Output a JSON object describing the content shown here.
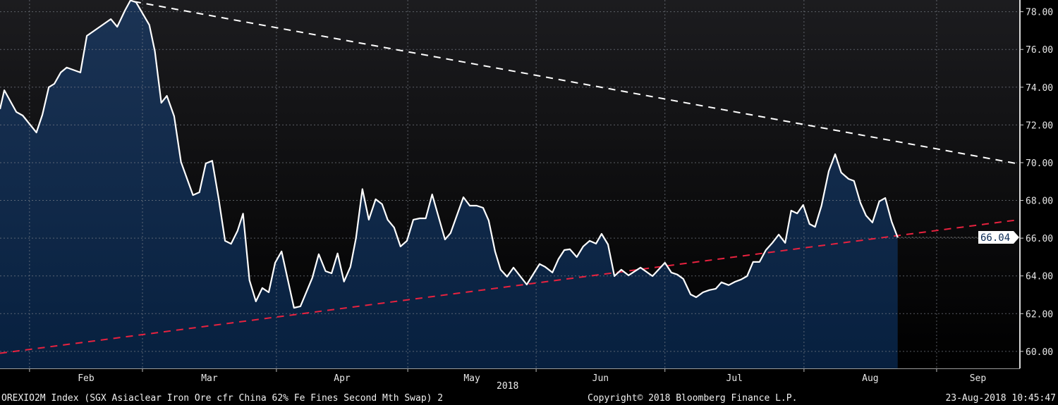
{
  "chart_data": {
    "type": "area",
    "title": "OREXIO2M Index (SGX Asiaclear Iron Ore cfr China 62% Fe Fines Second Mth Swap) 2",
    "x_unit": "day of year 2018",
    "xlim": [
      24.1,
      262.3
    ],
    "ylim": [
      59.1,
      78.62
    ],
    "year_label": "2018",
    "y_ticks": [
      60,
      62,
      64,
      66,
      68,
      70,
      72,
      74,
      76,
      78
    ],
    "y_tick_labels": [
      "60.00",
      "62.00",
      "64.00",
      "66.00",
      "68.00",
      "70.00",
      "72.00",
      "74.00",
      "76.00",
      "78.00"
    ],
    "x_ticks": [
      {
        "label": "Feb",
        "start": 31,
        "end": 57.4
      },
      {
        "label": "Mar",
        "start": 57.4,
        "end": 88.7
      },
      {
        "label": "Apr",
        "start": 88.7,
        "end": 119.4
      },
      {
        "label": "May",
        "start": 119.4,
        "end": 149.4
      },
      {
        "label": "Jun",
        "start": 149.4,
        "end": 179.5
      },
      {
        "label": "Jul",
        "start": 179.5,
        "end": 212
      },
      {
        "label": "Aug",
        "start": 212,
        "end": 243
      },
      {
        "label": "Sep",
        "start": 243,
        "end": 262.3
      }
    ],
    "grid": true,
    "last_value": 66.04,
    "last_value_label": "66.04",
    "series": [
      {
        "name": "OREXIO2M Index",
        "color": "#ffffff",
        "fill_top": "#1b3354",
        "fill_bottom": "#07203f",
        "points": [
          [
            24.1,
            72.84
          ],
          [
            25.1,
            73.84
          ],
          [
            27.9,
            72.69
          ],
          [
            29.4,
            72.5
          ],
          [
            32.6,
            71.6
          ],
          [
            34.0,
            72.54
          ],
          [
            35.5,
            74.0
          ],
          [
            36.8,
            74.18
          ],
          [
            38.3,
            74.78
          ],
          [
            39.7,
            75.04
          ],
          [
            42.9,
            74.78
          ],
          [
            44.4,
            76.72
          ],
          [
            50.0,
            77.61
          ],
          [
            51.5,
            77.2
          ],
          [
            53.3,
            78.06
          ],
          [
            54.6,
            78.6
          ],
          [
            55.9,
            78.5
          ],
          [
            59.0,
            77.3
          ],
          [
            60.3,
            75.9
          ],
          [
            61.8,
            73.17
          ],
          [
            63.1,
            73.54
          ],
          [
            64.8,
            72.46
          ],
          [
            66.4,
            70.04
          ],
          [
            69.2,
            68.28
          ],
          [
            70.7,
            68.43
          ],
          [
            72.2,
            69.96
          ],
          [
            73.7,
            70.1
          ],
          [
            75.2,
            68.1
          ],
          [
            76.7,
            65.86
          ],
          [
            78.1,
            65.7
          ],
          [
            79.6,
            66.38
          ],
          [
            80.9,
            67.3
          ],
          [
            82.4,
            63.77
          ],
          [
            83.9,
            62.65
          ],
          [
            85.4,
            63.36
          ],
          [
            86.9,
            63.13
          ],
          [
            88.4,
            64.7
          ],
          [
            89.9,
            65.3
          ],
          [
            92.8,
            62.31
          ],
          [
            94.3,
            62.39
          ],
          [
            97.1,
            63.9
          ],
          [
            98.6,
            65.15
          ],
          [
            100.2,
            64.25
          ],
          [
            101.6,
            64.14
          ],
          [
            103.0,
            65.19
          ],
          [
            104.5,
            63.7
          ],
          [
            106.0,
            64.48
          ],
          [
            107.3,
            66.0
          ],
          [
            108.8,
            68.6
          ],
          [
            110.3,
            66.98
          ],
          [
            111.9,
            68.06
          ],
          [
            113.4,
            67.8
          ],
          [
            114.7,
            66.98
          ],
          [
            116.2,
            66.57
          ],
          [
            117.7,
            65.56
          ],
          [
            119.2,
            65.86
          ],
          [
            120.7,
            66.98
          ],
          [
            122.2,
            67.05
          ],
          [
            123.6,
            67.05
          ],
          [
            125.1,
            68.32
          ],
          [
            128.1,
            65.93
          ],
          [
            129.4,
            66.27
          ],
          [
            132.4,
            68.17
          ],
          [
            133.9,
            67.72
          ],
          [
            135.5,
            67.72
          ],
          [
            137.0,
            67.61
          ],
          [
            138.3,
            66.94
          ],
          [
            139.8,
            65.3
          ],
          [
            141.1,
            64.33
          ],
          [
            142.6,
            63.96
          ],
          [
            144.1,
            64.44
          ],
          [
            147.2,
            63.54
          ],
          [
            150.2,
            64.63
          ],
          [
            151.5,
            64.48
          ],
          [
            153.2,
            64.18
          ],
          [
            154.6,
            64.89
          ],
          [
            156.0,
            65.37
          ],
          [
            157.3,
            65.41
          ],
          [
            158.9,
            65.0
          ],
          [
            160.4,
            65.56
          ],
          [
            161.9,
            65.86
          ],
          [
            163.4,
            65.71
          ],
          [
            164.7,
            66.23
          ],
          [
            166.2,
            65.67
          ],
          [
            167.7,
            63.99
          ],
          [
            169.3,
            64.33
          ],
          [
            171.0,
            64.03
          ],
          [
            173.8,
            64.44
          ],
          [
            176.6,
            63.99
          ],
          [
            179.5,
            64.7
          ],
          [
            181.0,
            64.18
          ],
          [
            182.4,
            64.07
          ],
          [
            183.8,
            63.84
          ],
          [
            185.5,
            63.02
          ],
          [
            186.8,
            62.87
          ],
          [
            188.4,
            63.13
          ],
          [
            189.9,
            63.25
          ],
          [
            191.4,
            63.32
          ],
          [
            192.7,
            63.66
          ],
          [
            194.4,
            63.51
          ],
          [
            195.9,
            63.69
          ],
          [
            197.3,
            63.81
          ],
          [
            198.7,
            63.99
          ],
          [
            200.1,
            64.74
          ],
          [
            201.6,
            64.74
          ],
          [
            203.1,
            65.37
          ],
          [
            204.6,
            65.75
          ],
          [
            206.1,
            66.19
          ],
          [
            207.6,
            65.75
          ],
          [
            209.0,
            67.46
          ],
          [
            210.4,
            67.31
          ],
          [
            211.8,
            67.76
          ],
          [
            213.3,
            66.75
          ],
          [
            214.6,
            66.6
          ],
          [
            216.1,
            67.72
          ],
          [
            217.8,
            69.55
          ],
          [
            219.3,
            70.45
          ],
          [
            220.7,
            69.48
          ],
          [
            222.4,
            69.14
          ],
          [
            223.7,
            69.03
          ],
          [
            225.2,
            67.87
          ],
          [
            226.5,
            67.2
          ],
          [
            228.0,
            66.83
          ],
          [
            229.6,
            67.95
          ],
          [
            231.0,
            68.13
          ],
          [
            232.5,
            66.87
          ],
          [
            233.9,
            66.04
          ]
        ]
      }
    ],
    "trendlines": [
      {
        "name": "resistance",
        "color": "#ffffff",
        "from": [
          55.4,
          78.54
        ],
        "to": [
          262.3,
          69.93
        ]
      },
      {
        "name": "support",
        "color": "#e8223f",
        "from": [
          24.1,
          59.9
        ],
        "to": [
          262.3,
          66.98
        ]
      }
    ]
  },
  "footer": {
    "title": "OREXIO2M Index (SGX Asiaclear Iron Ore cfr China 62% Fe Fines Second Mth Swap) 2",
    "copyright": "Copyright© 2018 Bloomberg Finance L.P.",
    "timestamp": "23-Aug-2018 10:45:47"
  }
}
